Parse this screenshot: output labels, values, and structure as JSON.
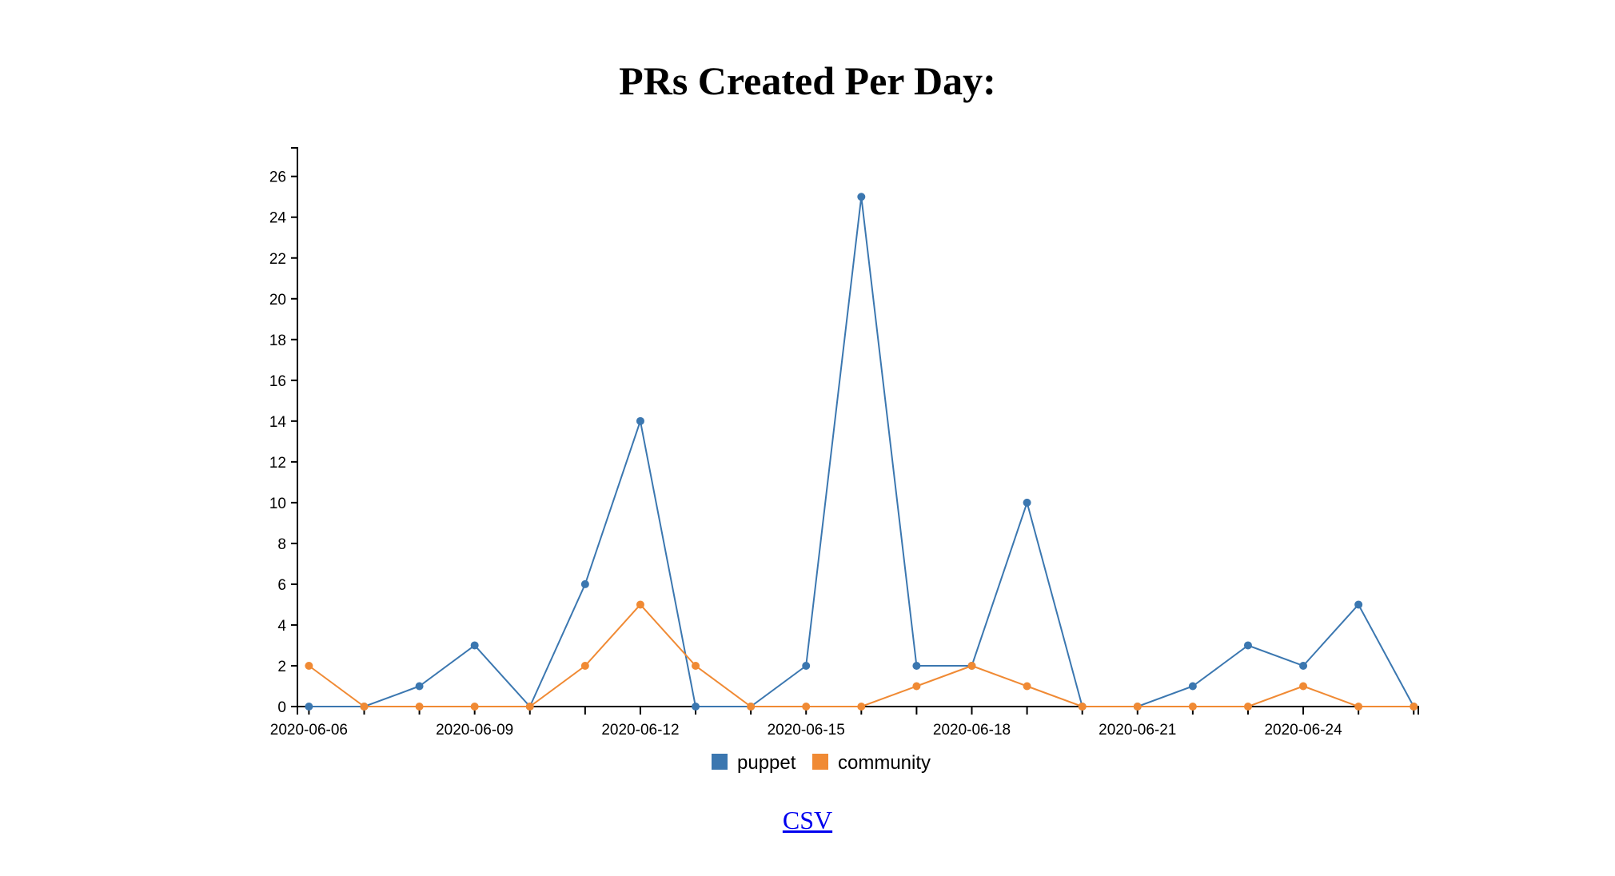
{
  "page": {
    "title": "PRs Created Per Day:",
    "csv_link": "CSV"
  },
  "chart_data": {
    "type": "line",
    "title": "PRs Created Per Day:",
    "xlabel": "",
    "ylabel": "",
    "x_tick_labels": [
      "2020-06-06",
      "2020-06-09",
      "2020-06-12",
      "2020-06-15",
      "2020-06-18",
      "2020-06-21",
      "2020-06-24"
    ],
    "x": [
      "2020-06-06",
      "2020-06-07",
      "2020-06-08",
      "2020-06-09",
      "2020-06-10",
      "2020-06-11",
      "2020-06-12",
      "2020-06-13",
      "2020-06-14",
      "2020-06-15",
      "2020-06-16",
      "2020-06-17",
      "2020-06-18",
      "2020-06-19",
      "2020-06-20",
      "2020-06-21",
      "2020-06-22",
      "2020-06-23",
      "2020-06-24",
      "2020-06-25",
      "2020-06-26"
    ],
    "x_range": [
      "2020-06-05T19:00",
      "2020-06-26T02:00"
    ],
    "series": [
      {
        "name": "puppet",
        "color": "#3b77b0",
        "values": [
          0,
          0,
          1,
          3,
          0,
          6,
          14,
          0,
          0,
          2,
          25,
          2,
          2,
          10,
          0,
          0,
          1,
          3,
          2,
          5,
          0
        ]
      },
      {
        "name": "community",
        "color": "#f08a34",
        "values": [
          2,
          0,
          0,
          0,
          0,
          2,
          5,
          2,
          0,
          0,
          0,
          1,
          2,
          1,
          0,
          0,
          0,
          0,
          1,
          0,
          0
        ]
      }
    ],
    "ylim": [
      0,
      27.4
    ],
    "y_ticks": [
      0,
      2,
      4,
      6,
      8,
      10,
      12,
      14,
      16,
      18,
      20,
      22,
      24,
      26
    ],
    "grid": false,
    "legend": "bottom-center"
  }
}
